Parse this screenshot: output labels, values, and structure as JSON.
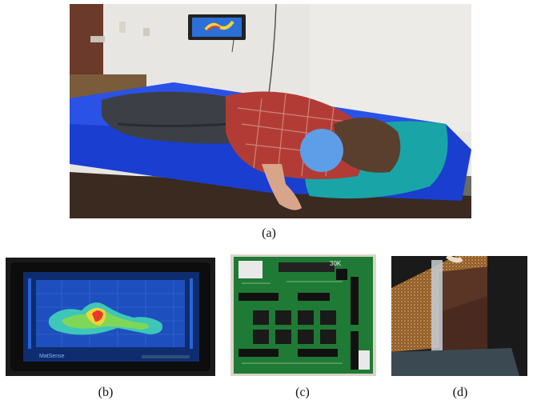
{
  "captions": {
    "a": "(a)",
    "b": "(b)",
    "c": "(c)",
    "d": "(d)"
  },
  "tablet_brand_text": "MatSense",
  "board_label": "30K",
  "colors": {
    "mattress": "#1b3fd0",
    "pillow": "#1aa7a8",
    "wall": "#e9e8e4",
    "shirt": "#b13b35",
    "pants": "#3b3e44",
    "face_mask": "#5e9ee8",
    "pcb": "#1f7a35",
    "heatmap_bg": "#1d4fbe"
  },
  "icons": [
    "wall-tablet-icon",
    "heatmap-icon",
    "pcb-chip-icon",
    "sensor-fabric-icon"
  ]
}
